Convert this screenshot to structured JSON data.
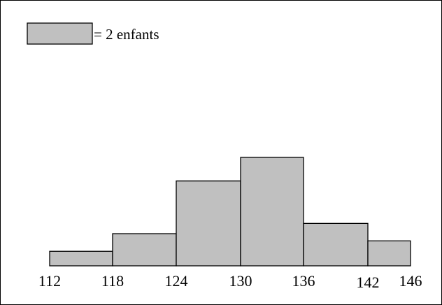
{
  "chart_data": {
    "type": "bar",
    "subtype": "histogram",
    "bins": [
      {
        "from": 112,
        "to": 118,
        "area_units": 0.67
      },
      {
        "from": 118,
        "to": 124,
        "area_units": 1.5
      },
      {
        "from": 124,
        "to": 130,
        "area_units": 4
      },
      {
        "from": 130,
        "to": 136,
        "area_units": 5
      },
      {
        "from": 136,
        "to": 142,
        "area_units": 2
      },
      {
        "from": 142,
        "to": 146,
        "area_units": 0.78
      }
    ],
    "tick_labels": [
      "112",
      "118",
      "124",
      "130",
      "136",
      "142",
      "146"
    ],
    "xlim": [
      112,
      146
    ],
    "legend": {
      "swatch_label": "= 2 enfants",
      "unit_value": 2,
      "position": "top-left"
    },
    "grid": false,
    "title": "",
    "xlabel": "",
    "ylabel": "",
    "colors": {
      "bar_fill": "#c0c0c0",
      "bar_stroke": "#000000",
      "frame": "#000000"
    }
  }
}
